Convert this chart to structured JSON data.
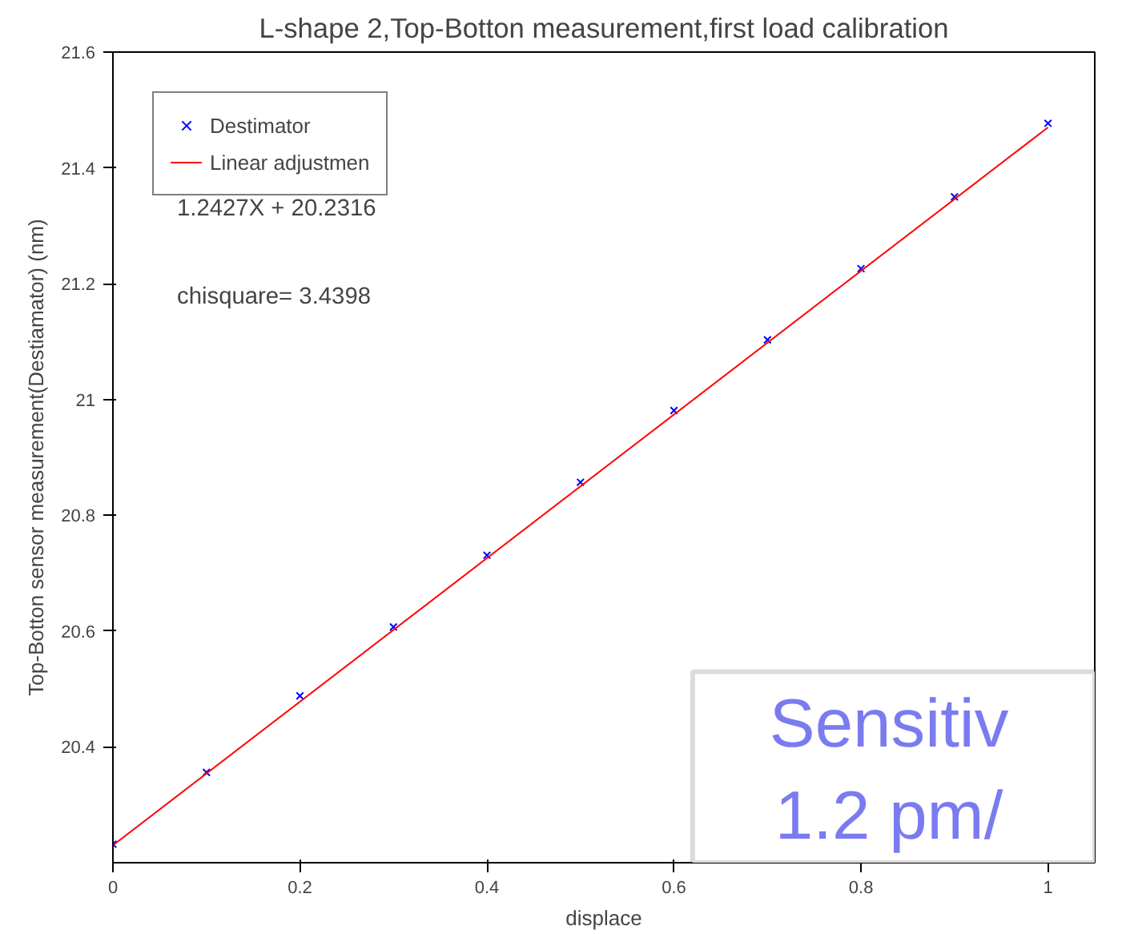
{
  "chart_data": {
    "type": "scatter",
    "title": "L-shape 2,Top-Botton measurement,first load calibration",
    "xlabel": "displace",
    "ylabel": "Top-Botton sensor measurement(Destiamator) (nm)",
    "x": [
      0,
      0.1,
      0.2,
      0.3,
      0.4,
      0.5,
      0.6,
      0.7,
      0.8,
      0.9,
      1.0
    ],
    "series": [
      {
        "name": "Destimator",
        "color": "#0000ff",
        "marker": "cross",
        "values": [
          20.232,
          20.356,
          20.488,
          20.607,
          20.731,
          20.857,
          20.981,
          21.103,
          21.226,
          21.35,
          21.477
        ]
      },
      {
        "name": "Linear adjustmen",
        "color": "#ff0000",
        "type": "line",
        "line_style": "solid",
        "x": [
          0,
          1.0
        ],
        "values": [
          20.23,
          21.47
        ]
      }
    ],
    "xlim": [
      0,
      1.05
    ],
    "ylim": [
      20.2,
      21.6
    ],
    "xticks": [
      0,
      {
        "value": 0.2,
        "label": "0.2"
      },
      {
        "value": 0.4,
        "label": "0.4"
      },
      {
        "value": 0.6,
        "label": "0.6"
      },
      {
        "value": 0.8,
        "label": "0.8"
      },
      1
    ],
    "yticks": [
      {
        "value": 20.4,
        "label": "20.4"
      },
      {
        "value": 20.6,
        "label": "20.6"
      },
      {
        "value": 20.8,
        "label": "20.8"
      },
      21,
      {
        "value": 21.2,
        "label": "21.2"
      },
      {
        "value": 21.4,
        "label": "21.4"
      },
      {
        "value": 21.6,
        "label": "21.6"
      }
    ],
    "legend": "top left",
    "grid": false,
    "annotations": [
      "1.2427X + 20.2316",
      "chisquare= 3.4398",
      "Sensitiv",
      "1.2 pm/"
    ]
  }
}
